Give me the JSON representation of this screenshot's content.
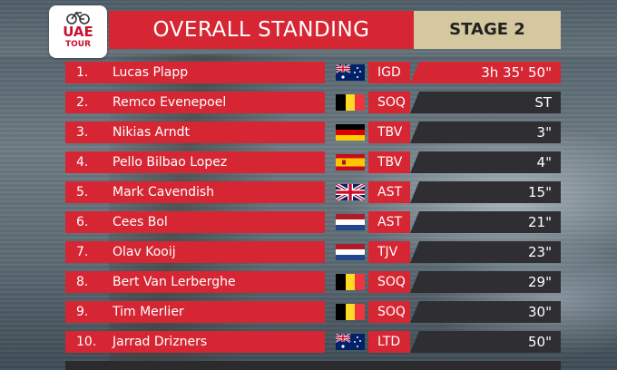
{
  "header": {
    "logo_top": "UAE",
    "logo_bottom": "TOUR",
    "title": "OVERALL STANDING",
    "stage": "STAGE 2"
  },
  "rows": [
    {
      "pos": "1.",
      "name": "Lucas Plapp",
      "flag": "australia-flag",
      "team": "IGD",
      "time": "3h 35' 50\""
    },
    {
      "pos": "2.",
      "name": "Remco Evenepoel",
      "flag": "belgium-flag",
      "team": "SOQ",
      "time": "ST"
    },
    {
      "pos": "3.",
      "name": "Nikias Arndt",
      "flag": "germany-flag",
      "team": "TBV",
      "time": "3\""
    },
    {
      "pos": "4.",
      "name": "Pello Bilbao Lopez",
      "flag": "spain-flag",
      "team": "TBV",
      "time": "4\""
    },
    {
      "pos": "5.",
      "name": "Mark Cavendish",
      "flag": "uk-flag",
      "team": "AST",
      "time": "15\""
    },
    {
      "pos": "6.",
      "name": "Cees Bol",
      "flag": "netherlands-flag",
      "team": "AST",
      "time": "21\""
    },
    {
      "pos": "7.",
      "name": "Olav Kooij",
      "flag": "netherlands-flag",
      "team": "TJV",
      "time": "23\""
    },
    {
      "pos": "8.",
      "name": "Bert Van Lerberghe",
      "flag": "belgium-flag",
      "team": "SOQ",
      "time": "29\""
    },
    {
      "pos": "9.",
      "name": "Tim Merlier",
      "flag": "belgium-flag",
      "team": "SOQ",
      "time": "30\""
    },
    {
      "pos": "10.",
      "name": "Jarrad Drizners",
      "flag": "australia-flag",
      "team": "LTD",
      "time": "50\""
    }
  ],
  "colors": {
    "accent_red": "#d62633",
    "stage_gold": "#d5c7a0",
    "time_dark": "#2f2f33"
  }
}
